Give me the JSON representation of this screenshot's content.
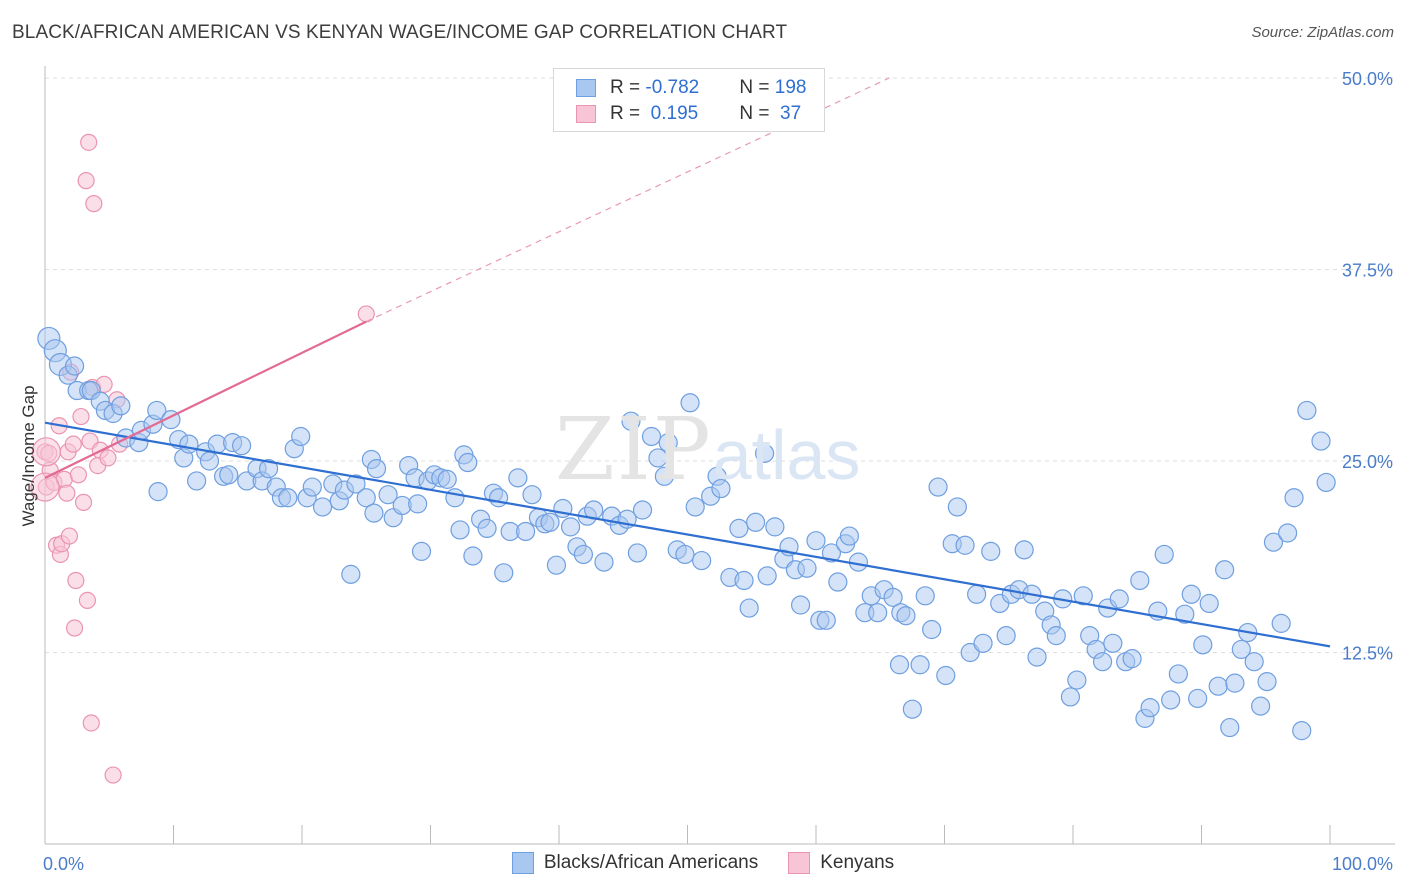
{
  "header": {
    "title": "BLACK/AFRICAN AMERICAN VS KENYAN WAGE/INCOME GAP CORRELATION CHART",
    "source": "Source: ZipAtlas.com"
  },
  "watermark": {
    "zip": "ZIP",
    "atlas": "atlas"
  },
  "legend": {
    "rows": [
      {
        "r_label": "R = ",
        "r_value": "-0.782",
        "n_label": "N = ",
        "n_value": "198",
        "color": "#a9c8f0",
        "border": "#6f9fe0"
      },
      {
        "r_label": "R = ",
        "r_value": " 0.195",
        "n_label": "N = ",
        "n_value": " 37",
        "color": "#f7c5d6",
        "border": "#ea94b2"
      }
    ]
  },
  "bottom_legend": [
    {
      "label": "Blacks/African Americans",
      "color": "#a9c8f0",
      "border": "#6f9fe0"
    },
    {
      "label": "Kenyans",
      "color": "#f7c5d6",
      "border": "#ea94b2"
    }
  ],
  "chart_data": {
    "type": "scatter",
    "title": "BLACK/AFRICAN AMERICAN VS KENYAN WAGE/INCOME GAP CORRELATION CHART",
    "xlabel": "",
    "ylabel": "Wage/Income Gap",
    "xlim": [
      0,
      100
    ],
    "ylim": [
      0,
      50
    ],
    "x_tick_labels": [
      "0.0%",
      "100.0%"
    ],
    "y_ticks": [
      12.5,
      25.0,
      37.5,
      50.0
    ],
    "y_tick_labels": [
      "12.5%",
      "25.0%",
      "37.5%",
      "50.0%"
    ],
    "grid": true,
    "series": [
      {
        "name": "Blacks/African Americans",
        "color": "#6f9fe0",
        "fill": "#a9c8f0",
        "R": -0.782,
        "N": 198,
        "trend": {
          "x": [
            0,
            100
          ],
          "y": [
            27.5,
            12.9
          ]
        },
        "points": [
          [
            0.3,
            33.0
          ],
          [
            0.8,
            32.2
          ],
          [
            1.2,
            31.3
          ],
          [
            1.8,
            30.6
          ],
          [
            2.3,
            31.2
          ],
          [
            2.5,
            29.6
          ],
          [
            3.4,
            29.6
          ],
          [
            3.6,
            29.6
          ],
          [
            4.3,
            28.9
          ],
          [
            4.7,
            28.3
          ],
          [
            5.3,
            28.1
          ],
          [
            5.9,
            28.6
          ],
          [
            6.3,
            26.5
          ],
          [
            7.3,
            26.2
          ],
          [
            7.5,
            27.0
          ],
          [
            8.4,
            27.4
          ],
          [
            8.7,
            28.3
          ],
          [
            9.8,
            27.7
          ],
          [
            8.8,
            23.0
          ],
          [
            10.4,
            26.4
          ],
          [
            10.8,
            25.2
          ],
          [
            11.2,
            26.1
          ],
          [
            11.8,
            23.7
          ],
          [
            12.5,
            25.6
          ],
          [
            12.8,
            25.0
          ],
          [
            13.4,
            26.1
          ],
          [
            13.9,
            24.0
          ],
          [
            14.3,
            24.1
          ],
          [
            14.6,
            26.2
          ],
          [
            15.3,
            26.0
          ],
          [
            15.7,
            23.7
          ],
          [
            16.5,
            24.5
          ],
          [
            16.9,
            23.7
          ],
          [
            17.4,
            24.5
          ],
          [
            18.0,
            23.3
          ],
          [
            18.4,
            22.6
          ],
          [
            18.9,
            22.6
          ],
          [
            19.4,
            25.8
          ],
          [
            19.9,
            26.6
          ],
          [
            20.4,
            22.6
          ],
          [
            20.8,
            23.3
          ],
          [
            21.6,
            22.0
          ],
          [
            22.4,
            23.5
          ],
          [
            22.9,
            22.4
          ],
          [
            23.3,
            23.1
          ],
          [
            23.8,
            17.6
          ],
          [
            24.2,
            23.5
          ],
          [
            25.0,
            22.6
          ],
          [
            25.4,
            25.1
          ],
          [
            25.6,
            21.6
          ],
          [
            25.8,
            24.5
          ],
          [
            26.7,
            22.8
          ],
          [
            27.1,
            21.3
          ],
          [
            27.8,
            22.1
          ],
          [
            28.3,
            24.7
          ],
          [
            28.8,
            23.9
          ],
          [
            29.0,
            22.2
          ],
          [
            29.3,
            19.1
          ],
          [
            29.8,
            23.7
          ],
          [
            30.3,
            24.1
          ],
          [
            30.8,
            23.9
          ],
          [
            31.3,
            23.8
          ],
          [
            31.9,
            22.6
          ],
          [
            32.3,
            20.5
          ],
          [
            32.6,
            25.4
          ],
          [
            32.9,
            24.9
          ],
          [
            33.3,
            18.8
          ],
          [
            33.9,
            21.2
          ],
          [
            34.4,
            20.6
          ],
          [
            34.9,
            22.9
          ],
          [
            35.3,
            22.6
          ],
          [
            35.7,
            17.7
          ],
          [
            36.2,
            20.4
          ],
          [
            36.8,
            23.9
          ],
          [
            37.4,
            20.4
          ],
          [
            37.9,
            22.8
          ],
          [
            38.4,
            21.3
          ],
          [
            38.9,
            20.9
          ],
          [
            39.3,
            21.0
          ],
          [
            39.8,
            18.2
          ],
          [
            40.3,
            21.9
          ],
          [
            40.9,
            20.7
          ],
          [
            41.4,
            19.4
          ],
          [
            41.9,
            18.9
          ],
          [
            42.2,
            21.4
          ],
          [
            42.7,
            21.8
          ],
          [
            43.5,
            18.4
          ],
          [
            44.1,
            21.4
          ],
          [
            44.7,
            20.8
          ],
          [
            45.3,
            21.2
          ],
          [
            45.6,
            27.6
          ],
          [
            46.1,
            19.0
          ],
          [
            46.5,
            21.8
          ],
          [
            47.2,
            26.6
          ],
          [
            47.7,
            25.2
          ],
          [
            48.2,
            24.0
          ],
          [
            48.5,
            26.2
          ],
          [
            49.2,
            19.2
          ],
          [
            49.8,
            18.9
          ],
          [
            50.2,
            28.8
          ],
          [
            50.6,
            22.0
          ],
          [
            51.1,
            18.5
          ],
          [
            51.8,
            22.7
          ],
          [
            52.3,
            24.0
          ],
          [
            52.6,
            23.2
          ],
          [
            53.3,
            17.4
          ],
          [
            54.0,
            20.6
          ],
          [
            54.4,
            17.2
          ],
          [
            54.8,
            15.4
          ],
          [
            55.3,
            21.0
          ],
          [
            56.0,
            25.5
          ],
          [
            56.2,
            17.5
          ],
          [
            56.8,
            20.7
          ],
          [
            57.5,
            18.6
          ],
          [
            57.9,
            19.4
          ],
          [
            58.4,
            17.9
          ],
          [
            58.8,
            15.6
          ],
          [
            59.3,
            18.0
          ],
          [
            60.0,
            19.8
          ],
          [
            60.3,
            14.6
          ],
          [
            60.8,
            14.6
          ],
          [
            61.2,
            19.0
          ],
          [
            61.7,
            17.1
          ],
          [
            62.3,
            19.6
          ],
          [
            62.6,
            20.1
          ],
          [
            63.3,
            18.4
          ],
          [
            63.8,
            15.1
          ],
          [
            64.3,
            16.2
          ],
          [
            64.8,
            15.1
          ],
          [
            65.3,
            16.6
          ],
          [
            66.0,
            16.1
          ],
          [
            66.5,
            11.7
          ],
          [
            66.6,
            15.1
          ],
          [
            67.0,
            14.9
          ],
          [
            67.5,
            8.8
          ],
          [
            68.1,
            11.7
          ],
          [
            68.5,
            16.2
          ],
          [
            69.0,
            14.0
          ],
          [
            69.5,
            23.3
          ],
          [
            70.1,
            11.0
          ],
          [
            70.6,
            19.6
          ],
          [
            71.0,
            22.0
          ],
          [
            71.6,
            19.5
          ],
          [
            72.0,
            12.5
          ],
          [
            72.5,
            16.3
          ],
          [
            73.0,
            13.1
          ],
          [
            73.6,
            19.1
          ],
          [
            74.3,
            15.7
          ],
          [
            74.8,
            13.6
          ],
          [
            75.2,
            16.3
          ],
          [
            75.8,
            16.6
          ],
          [
            76.2,
            19.2
          ],
          [
            76.8,
            16.3
          ],
          [
            77.2,
            12.2
          ],
          [
            77.8,
            15.2
          ],
          [
            78.3,
            14.3
          ],
          [
            78.7,
            13.6
          ],
          [
            79.2,
            16.0
          ],
          [
            79.8,
            9.6
          ],
          [
            80.3,
            10.7
          ],
          [
            80.8,
            16.2
          ],
          [
            81.3,
            13.6
          ],
          [
            81.8,
            12.7
          ],
          [
            82.3,
            11.9
          ],
          [
            82.7,
            15.4
          ],
          [
            83.1,
            13.1
          ],
          [
            83.6,
            16.0
          ],
          [
            84.1,
            11.9
          ],
          [
            84.6,
            12.1
          ],
          [
            85.2,
            17.2
          ],
          [
            85.6,
            8.2
          ],
          [
            86.0,
            8.9
          ],
          [
            86.6,
            15.2
          ],
          [
            87.1,
            18.9
          ],
          [
            87.6,
            9.4
          ],
          [
            88.2,
            11.1
          ],
          [
            88.7,
            15.0
          ],
          [
            89.2,
            16.3
          ],
          [
            89.7,
            9.5
          ],
          [
            90.1,
            13.0
          ],
          [
            90.6,
            15.7
          ],
          [
            91.3,
            10.3
          ],
          [
            91.8,
            17.9
          ],
          [
            92.2,
            7.6
          ],
          [
            92.6,
            10.5
          ],
          [
            93.1,
            12.7
          ],
          [
            93.6,
            13.8
          ],
          [
            94.1,
            11.9
          ],
          [
            94.6,
            9.0
          ],
          [
            95.1,
            10.6
          ],
          [
            95.6,
            19.7
          ],
          [
            96.2,
            14.4
          ],
          [
            96.7,
            20.3
          ],
          [
            97.2,
            22.6
          ],
          [
            97.8,
            7.4
          ],
          [
            98.2,
            28.3
          ],
          [
            99.3,
            26.3
          ],
          [
            99.7,
            23.6
          ]
        ]
      },
      {
        "name": "Kenyans",
        "color": "#ea94b2",
        "fill": "#f7c5d6",
        "R": 0.195,
        "N": 37,
        "trend": {
          "x": [
            0,
            25
          ],
          "y": [
            23.9,
            34.1
          ]
        },
        "trend_extended": {
          "x": [
            25,
            65.7
          ],
          "y": [
            34.1,
            50.0
          ]
        },
        "points": [
          [
            0.0,
            25.6
          ],
          [
            0.1,
            23.3
          ],
          [
            0.3,
            25.5
          ],
          [
            0.4,
            24.4
          ],
          [
            0.7,
            23.6
          ],
          [
            0.9,
            19.5
          ],
          [
            1.1,
            27.3
          ],
          [
            1.2,
            18.9
          ],
          [
            1.3,
            19.6
          ],
          [
            1.5,
            23.8
          ],
          [
            1.7,
            22.9
          ],
          [
            1.8,
            25.6
          ],
          [
            1.9,
            20.1
          ],
          [
            2.0,
            30.8
          ],
          [
            2.2,
            26.1
          ],
          [
            2.3,
            14.1
          ],
          [
            2.4,
            17.2
          ],
          [
            2.6,
            24.1
          ],
          [
            2.8,
            27.9
          ],
          [
            3.0,
            22.3
          ],
          [
            3.2,
            43.3
          ],
          [
            3.3,
            15.9
          ],
          [
            3.4,
            45.8
          ],
          [
            3.5,
            26.3
          ],
          [
            3.6,
            7.9
          ],
          [
            3.7,
            29.8
          ],
          [
            3.8,
            41.8
          ],
          [
            4.1,
            24.7
          ],
          [
            4.3,
            25.7
          ],
          [
            4.6,
            30.0
          ],
          [
            4.9,
            25.2
          ],
          [
            5.3,
            4.5
          ],
          [
            5.6,
            29.0
          ],
          [
            5.8,
            26.1
          ],
          [
            25.0,
            34.6
          ]
        ],
        "large_points": [
          [
            0.0,
            23.3
          ],
          [
            0.1,
            25.6
          ]
        ]
      }
    ]
  }
}
